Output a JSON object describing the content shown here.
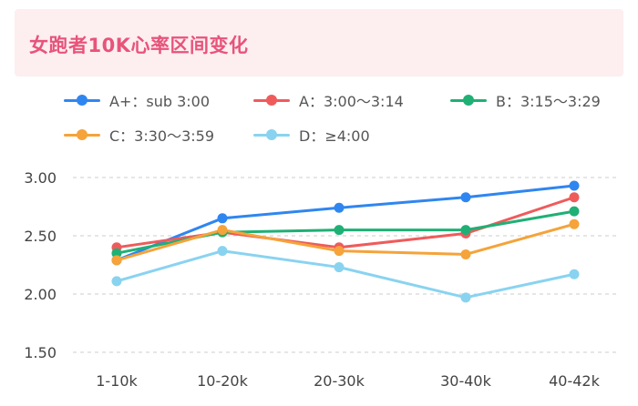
{
  "colors": {
    "banner_bg": "#fdeef0",
    "title": "#e8537a",
    "grid": "#cccccc"
  },
  "chart_data": {
    "type": "line",
    "title": "女跑者10K心率区间变化",
    "xlabel": "",
    "ylabel": "",
    "categories": [
      "1-10k",
      "10-20k",
      "20-30k",
      "30-40k",
      "40-42k"
    ],
    "yticks": [
      "3.00",
      "2.50",
      "2.00",
      "1.50"
    ],
    "ylim": [
      1.5,
      3.0
    ],
    "grid": "horizontal-dashed",
    "legend_position": "top",
    "series": [
      {
        "name": "A+：sub 3:00",
        "color": "#2f86f0",
        "values": [
          2.29,
          2.65,
          2.74,
          2.83,
          2.93
        ]
      },
      {
        "name": "A：3:00～3:14",
        "color": "#ef5b5b",
        "values": [
          2.4,
          2.53,
          2.4,
          2.52,
          2.83
        ]
      },
      {
        "name": "B：3:15～3:29",
        "color": "#1fb075",
        "values": [
          2.35,
          2.53,
          2.55,
          2.55,
          2.71
        ]
      },
      {
        "name": "C：3:30～3:59",
        "color": "#f5a33a",
        "values": [
          2.29,
          2.55,
          2.37,
          2.34,
          2.6
        ]
      },
      {
        "name": "D：≥4:00",
        "color": "#89d3f0",
        "values": [
          2.11,
          2.37,
          2.23,
          1.97,
          2.17
        ]
      }
    ]
  }
}
